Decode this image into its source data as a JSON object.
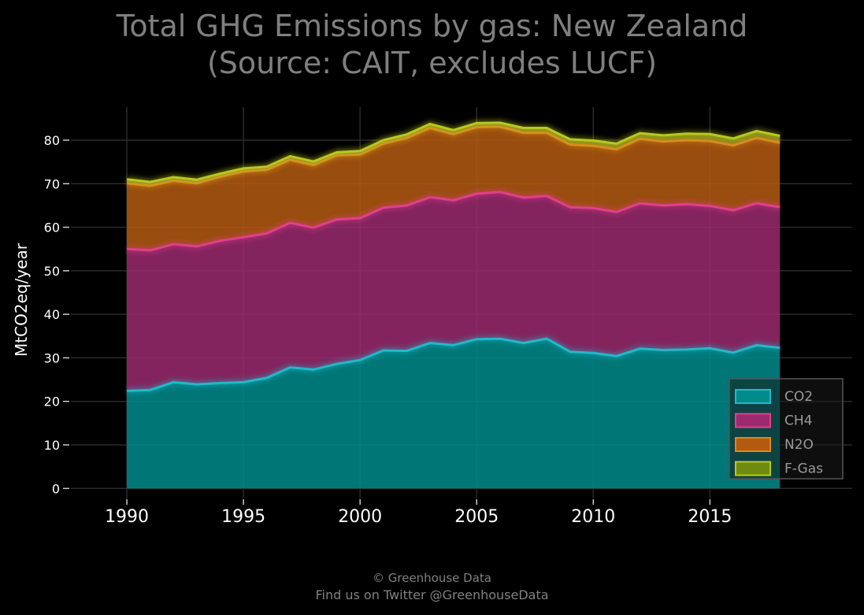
{
  "page": {
    "title_line1": "Total GHG Emissions by gas: New Zealand",
    "title_line2": "(Source: CAIT, excludes LUCF)",
    "footer_line1": "© Greenhouse Data",
    "footer_line2": "Find us on Twitter @GreenhouseData"
  },
  "chart_data": {
    "type": "area",
    "stacked": true,
    "title": "Total GHG Emissions by gas: New Zealand (Source: CAIT, excludes LUCF)",
    "xlabel": "",
    "ylabel": "MtCO2eq/year",
    "xlim": [
      1987.6,
      2021.1
    ],
    "ylim": [
      -2.3,
      88.5
    ],
    "x_ticks": [
      1990,
      1995,
      2000,
      2005,
      2010,
      2015
    ],
    "y_ticks": [
      0,
      10,
      20,
      30,
      40,
      50,
      60,
      70,
      80
    ],
    "grid": true,
    "legend_position": "bottom-right",
    "x": [
      1990,
      1991,
      1992,
      1993,
      1994,
      1995,
      1996,
      1997,
      1998,
      1999,
      2000,
      2001,
      2002,
      2003,
      2004,
      2005,
      2006,
      2007,
      2008,
      2009,
      2010,
      2011,
      2012,
      2013,
      2014,
      2015,
      2016,
      2017,
      2018
    ],
    "series": [
      {
        "name": "CO2",
        "color": "#008b8b",
        "values": [
          22.4,
          22.6,
          24.4,
          23.9,
          24.2,
          24.4,
          25.4,
          27.8,
          27.3,
          28.6,
          29.5,
          31.7,
          31.6,
          33.4,
          32.9,
          34.3,
          34.4,
          33.4,
          34.4,
          31.4,
          31.1,
          30.4,
          32.1,
          31.8,
          31.9,
          32.2,
          31.2,
          32.9,
          32.3
        ]
      },
      {
        "name": "CH4",
        "color": "#9b2a6e",
        "values": [
          32.6,
          32.1,
          31.7,
          31.7,
          32.7,
          33.3,
          33.2,
          33.2,
          32.6,
          33.2,
          32.6,
          32.8,
          33.4,
          33.5,
          33.3,
          33.4,
          33.7,
          33.4,
          32.8,
          33.2,
          33.3,
          33.1,
          33.4,
          33.2,
          33.4,
          32.7,
          32.7,
          32.6,
          32.3
        ]
      },
      {
        "name": "N2O",
        "color": "#b45a10",
        "values": [
          15.1,
          14.8,
          14.6,
          14.5,
          14.7,
          15.1,
          14.6,
          14.5,
          14.4,
          14.7,
          14.6,
          14.7,
          15.5,
          15.9,
          15.2,
          15.3,
          15.0,
          14.9,
          14.5,
          14.4,
          14.3,
          14.4,
          14.8,
          14.7,
          14.7,
          14.9,
          14.9,
          15.0,
          14.8
        ]
      },
      {
        "name": "F-Gas",
        "color": "#8a9a1a",
        "values": [
          0.9,
          0.9,
          0.8,
          0.8,
          0.7,
          0.7,
          0.7,
          0.8,
          0.8,
          0.7,
          0.8,
          0.8,
          0.8,
          0.9,
          0.9,
          0.9,
          0.9,
          1.1,
          1.1,
          1.2,
          1.2,
          1.3,
          1.3,
          1.4,
          1.5,
          1.6,
          1.6,
          1.6,
          1.6
        ]
      }
    ]
  }
}
